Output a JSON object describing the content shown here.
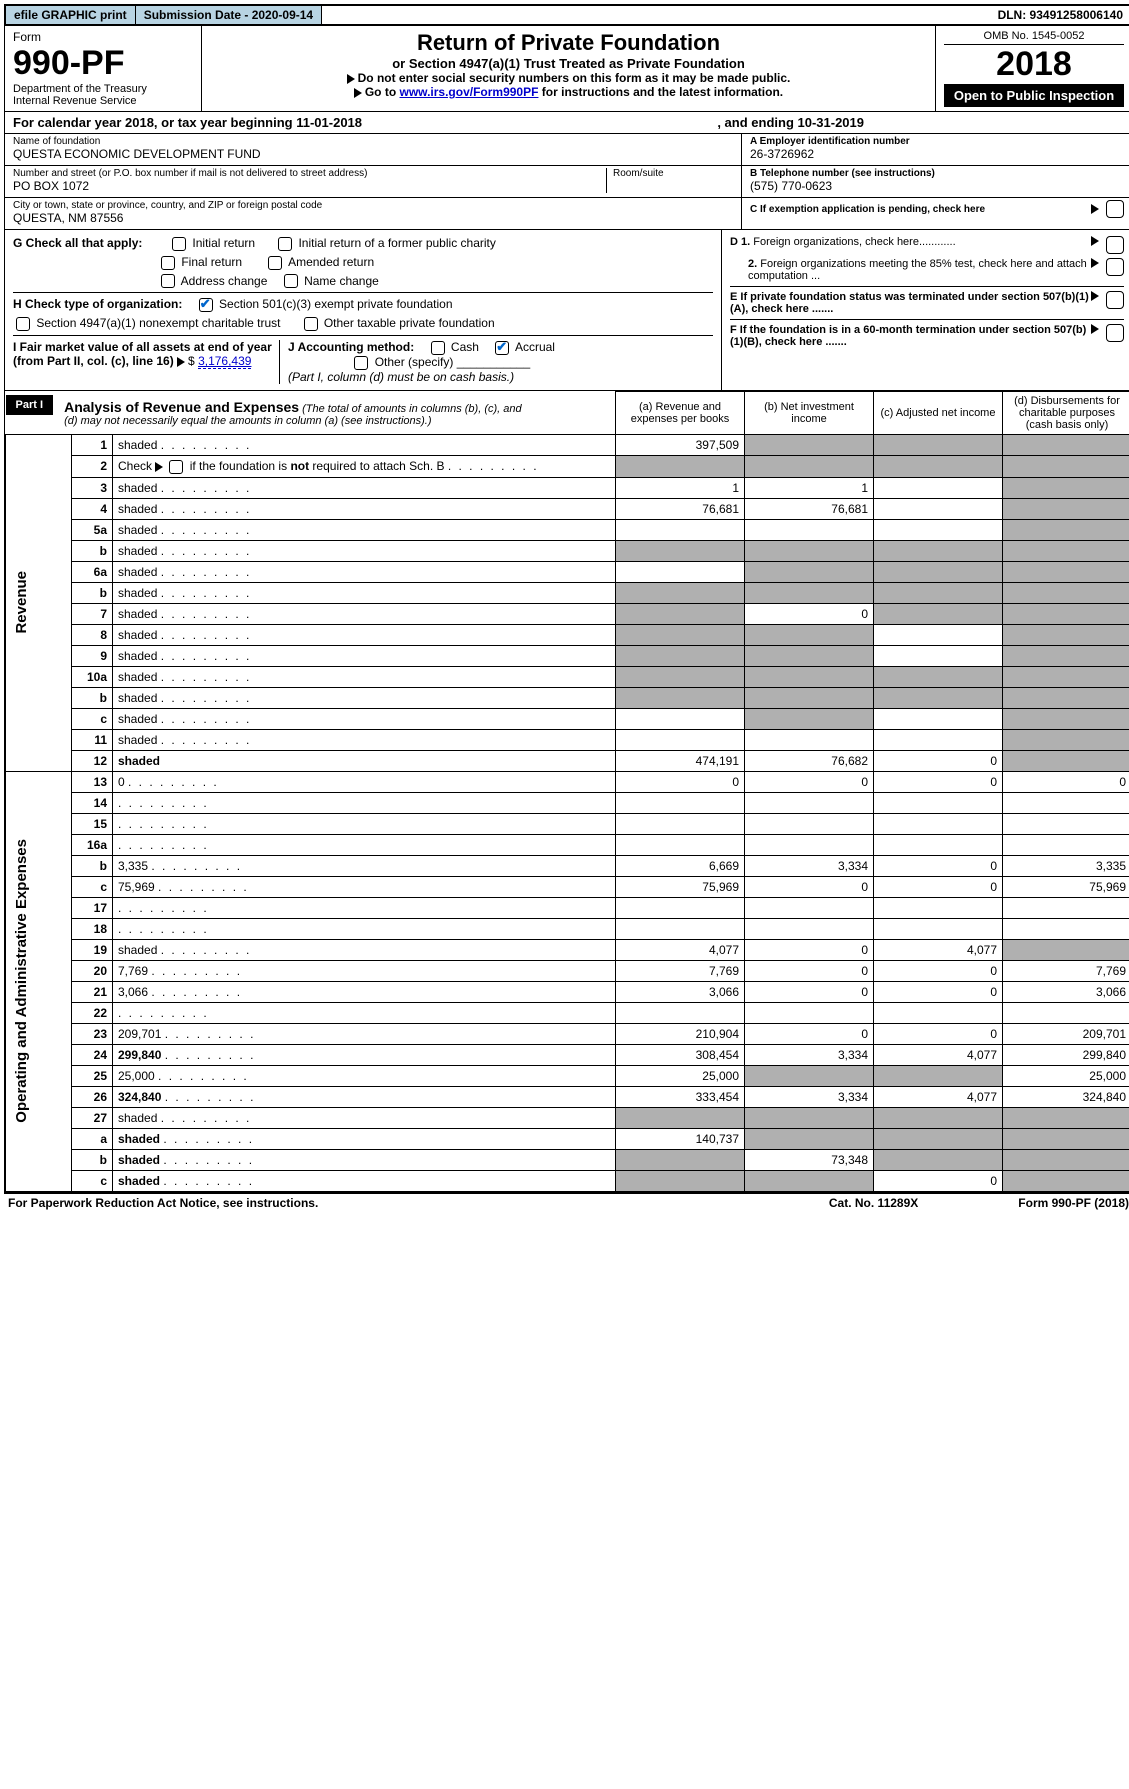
{
  "topbar": {
    "efile": "efile GRAPHIC print",
    "submission": "Submission Date - 2020-09-14",
    "dln": "DLN: 93491258006140"
  },
  "header": {
    "form": "Form",
    "form_no": "990-PF",
    "dept": "Department of the Treasury",
    "irs": "Internal Revenue Service",
    "title": "Return of Private Foundation",
    "subtitle": "or Section 4947(a)(1) Trust Treated as Private Foundation",
    "note1": "Do not enter social security numbers on this form as it may be made public.",
    "note2_pre": "Go to ",
    "note2_link": "www.irs.gov/Form990PF",
    "note2_post": " for instructions and the latest information.",
    "omb": "OMB No. 1545-0052",
    "year": "2018",
    "open": "Open to Public Inspection"
  },
  "calyear": {
    "text1": "For calendar year 2018, or tax year beginning 11-01-2018",
    "text2": ", and ending 10-31-2019"
  },
  "info": {
    "name_label": "Name of foundation",
    "name": "QUESTA ECONOMIC DEVELOPMENT FUND",
    "addr_label": "Number and street (or P.O. box number if mail is not delivered to street address)",
    "addr": "PO BOX 1072",
    "room_label": "Room/suite",
    "city_label": "City or town, state or province, country, and ZIP or foreign postal code",
    "city": "QUESTA, NM  87556",
    "a_label": "A Employer identification number",
    "a_val": "26-3726962",
    "b_label": "B Telephone number (see instructions)",
    "b_val": "(575) 770-0623",
    "c_label": "C If exemption application is pending, check here"
  },
  "checks": {
    "g_label": "G Check all that apply:",
    "g_initial": "Initial return",
    "g_initial_former": "Initial return of a former public charity",
    "g_final": "Final return",
    "g_amended": "Amended return",
    "g_address": "Address change",
    "g_name": "Name change",
    "h_label": "H Check type of organization:",
    "h_501c3": "Section 501(c)(3) exempt private foundation",
    "h_4947": "Section 4947(a)(1) nonexempt charitable trust",
    "h_other": "Other taxable private foundation",
    "i_label": "I Fair market value of all assets at end of year (from Part II, col. (c), line 16)",
    "i_val": "3,176,439",
    "j_label": "J Accounting method:",
    "j_cash": "Cash",
    "j_accrual": "Accrual",
    "j_other": "Other (specify)",
    "j_note": "(Part I, column (d) must be on cash basis.)",
    "d1": "D 1. Foreign organizations, check here",
    "d2": "2. Foreign organizations meeting the 85% test, check here and attach computation ...",
    "e": "E  If private foundation status was terminated under section 507(b)(1)(A), check here .......",
    "f": "F  If the foundation is in a 60-month termination under section 507(b)(1)(B), check here ......."
  },
  "part1": {
    "label": "Part I",
    "title": "Analysis of Revenue and Expenses",
    "title_note": "(The total of amounts in columns (b), (c), and (d) may not necessarily equal the amounts in column (a) (see instructions).)",
    "col_a": "(a)   Revenue and expenses per books",
    "col_b": "(b)   Net investment income",
    "col_c": "(c)   Adjusted net income",
    "col_d": "(d)   Disbursements for charitable purposes (cash basis only)"
  },
  "side": {
    "revenue": "Revenue",
    "expenses": "Operating and Administrative Expenses"
  },
  "rows": [
    {
      "n": "1",
      "d": "shaded",
      "a": "397,509",
      "b": "shaded",
      "c": "shaded"
    },
    {
      "n": "2",
      "d": "shaded",
      "a": "shaded",
      "b": "shaded",
      "c": "shaded"
    },
    {
      "n": "3",
      "d": "shaded",
      "a": "1",
      "b": "1",
      "c": ""
    },
    {
      "n": "4",
      "d": "shaded",
      "a": "76,681",
      "b": "76,681",
      "c": ""
    },
    {
      "n": "5a",
      "d": "shaded",
      "a": "",
      "b": "",
      "c": ""
    },
    {
      "n": "b",
      "d": "shaded",
      "a": "shaded",
      "b": "shaded",
      "c": "shaded"
    },
    {
      "n": "6a",
      "d": "shaded",
      "a": "",
      "b": "shaded",
      "c": "shaded"
    },
    {
      "n": "b",
      "d": "shaded",
      "a": "shaded",
      "b": "shaded",
      "c": "shaded"
    },
    {
      "n": "7",
      "d": "shaded",
      "a": "shaded",
      "b": "0",
      "c": "shaded"
    },
    {
      "n": "8",
      "d": "shaded",
      "a": "shaded",
      "b": "shaded",
      "c": ""
    },
    {
      "n": "9",
      "d": "shaded",
      "a": "shaded",
      "b": "shaded",
      "c": ""
    },
    {
      "n": "10a",
      "d": "shaded",
      "a": "shaded",
      "b": "shaded",
      "c": "shaded"
    },
    {
      "n": "b",
      "d": "shaded",
      "a": "shaded",
      "b": "shaded",
      "c": "shaded"
    },
    {
      "n": "c",
      "d": "shaded",
      "a": "",
      "b": "shaded",
      "c": ""
    },
    {
      "n": "11",
      "d": "shaded",
      "a": "",
      "b": "",
      "c": ""
    },
    {
      "n": "12",
      "d": "shaded",
      "a": "474,191",
      "b": "76,682",
      "c": "0",
      "bold": true
    }
  ],
  "exp_rows": [
    {
      "n": "13",
      "d": "0",
      "a": "0",
      "b": "0",
      "c": "0"
    },
    {
      "n": "14",
      "d": "",
      "a": "",
      "b": "",
      "c": ""
    },
    {
      "n": "15",
      "d": "",
      "a": "",
      "b": "",
      "c": ""
    },
    {
      "n": "16a",
      "d": "",
      "a": "",
      "b": "",
      "c": ""
    },
    {
      "n": "b",
      "d": "3,335",
      "a": "6,669",
      "b": "3,334",
      "c": "0"
    },
    {
      "n": "c",
      "d": "75,969",
      "a": "75,969",
      "b": "0",
      "c": "0"
    },
    {
      "n": "17",
      "d": "",
      "a": "",
      "b": "",
      "c": ""
    },
    {
      "n": "18",
      "d": "",
      "a": "",
      "b": "",
      "c": ""
    },
    {
      "n": "19",
      "d": "shaded",
      "a": "4,077",
      "b": "0",
      "c": "4,077"
    },
    {
      "n": "20",
      "d": "7,769",
      "a": "7,769",
      "b": "0",
      "c": "0"
    },
    {
      "n": "21",
      "d": "3,066",
      "a": "3,066",
      "b": "0",
      "c": "0"
    },
    {
      "n": "22",
      "d": "",
      "a": "",
      "b": "",
      "c": ""
    },
    {
      "n": "23",
      "d": "209,701",
      "a": "210,904",
      "b": "0",
      "c": "0"
    },
    {
      "n": "24",
      "d": "299,840",
      "a": "308,454",
      "b": "3,334",
      "c": "4,077",
      "bold": true
    },
    {
      "n": "25",
      "d": "25,000",
      "a": "25,000",
      "b": "shaded",
      "c": "shaded"
    },
    {
      "n": "26",
      "d": "324,840",
      "a": "333,454",
      "b": "3,334",
      "c": "4,077",
      "bold": true
    },
    {
      "n": "27",
      "d": "shaded",
      "a": "shaded",
      "b": "shaded",
      "c": "shaded"
    },
    {
      "n": "a",
      "d": "shaded",
      "a": "140,737",
      "b": "shaded",
      "c": "shaded",
      "bold": true
    },
    {
      "n": "b",
      "d": "shaded",
      "a": "shaded",
      "b": "73,348",
      "c": "shaded",
      "bold": true
    },
    {
      "n": "c",
      "d": "shaded",
      "a": "shaded",
      "b": "shaded",
      "c": "0",
      "bold": true
    }
  ],
  "footer": {
    "left": "For Paperwork Reduction Act Notice, see instructions.",
    "mid": "Cat. No. 11289X",
    "right": "Form 990-PF (2018)"
  }
}
